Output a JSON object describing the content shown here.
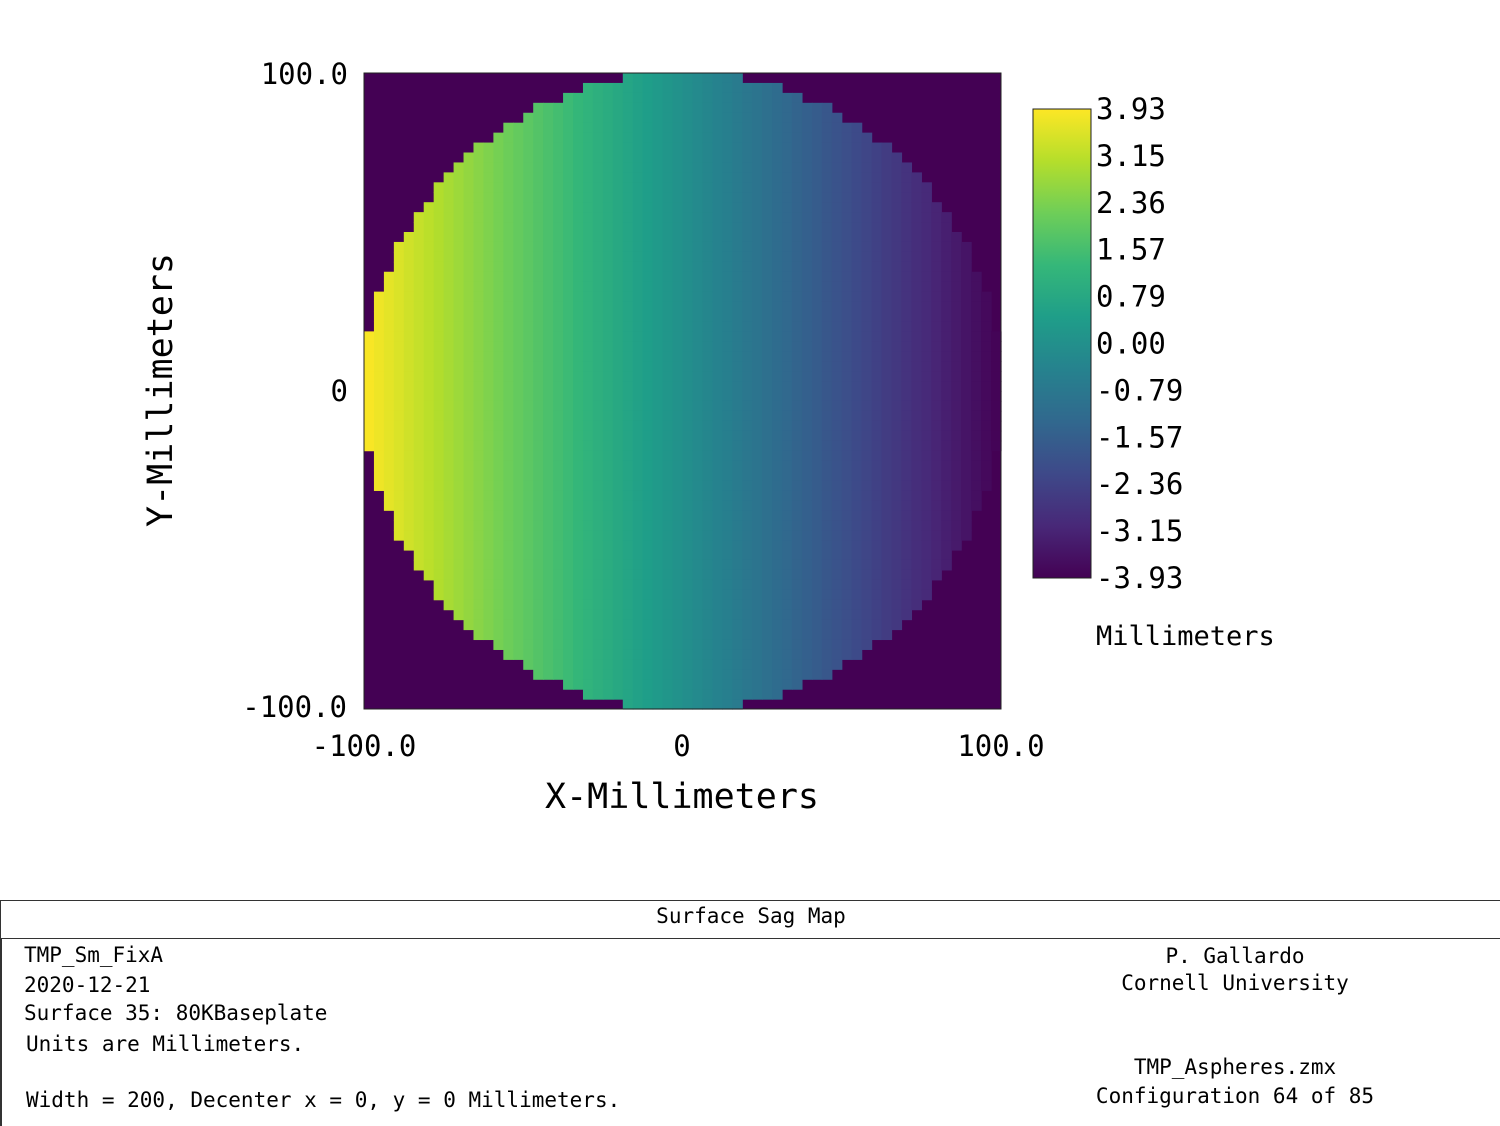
{
  "chart_data": {
    "type": "heatmap",
    "title": "Surface Sag Map",
    "xlabel": "X-Millimeters",
    "ylabel": "Y-Millimeters",
    "xlim": [
      -100.0,
      100.0
    ],
    "ylim": [
      -100.0,
      100.0
    ],
    "x_ticks": [
      "-100.0",
      "0",
      "100.0"
    ],
    "y_ticks": [
      "100.0",
      "0",
      "-100.0"
    ],
    "aperture": "circular",
    "aperture_radius": 100.0,
    "value_range": [
      -3.93,
      3.93
    ],
    "gradient": "linear in x, +3.93 at x = -100 to -3.93 at x = +100, uniform in y",
    "colormap": "viridis",
    "colormap_stops": [
      "#440154",
      "#482878",
      "#3e4989",
      "#31688e",
      "#26828e",
      "#1f9e89",
      "#35b779",
      "#6ece58",
      "#b5de2b",
      "#fde725"
    ],
    "outside_aperture_color": "#440154",
    "colorbar_ticks": [
      "3.93",
      "3.15",
      "2.36",
      "1.57",
      "0.79",
      "0.00",
      "-0.79",
      "-1.57",
      "-2.36",
      "-3.15",
      "-3.93"
    ],
    "colorbar_unit": "Millimeters",
    "grid": false
  },
  "footer": {
    "title": "Surface Sag Map",
    "left": {
      "line1": "TMP_Sm_FixA",
      "line2": "2020-12-21",
      "line3": "Surface 35: 80KBaseplate",
      "line4": "Units are Millimeters.",
      "line5": "Width = 200, Decenter x = 0, y = 0 Millimeters."
    },
    "right": {
      "author": "P. Gallardo",
      "org": "Cornell University",
      "file": "TMP_Aspheres.zmx",
      "config": "Configuration 64 of 85"
    }
  }
}
